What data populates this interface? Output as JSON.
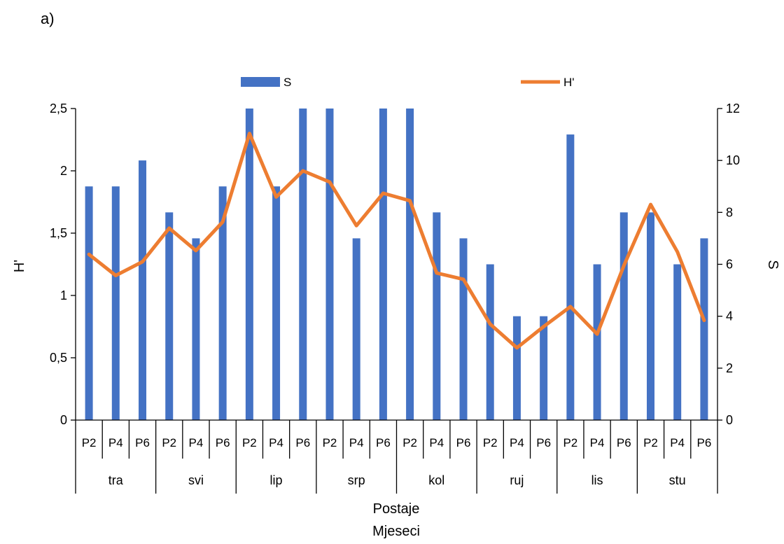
{
  "panel_label": "a)",
  "chart_data": {
    "type": "bar",
    "groups": [
      "tra",
      "svi",
      "lip",
      "srp",
      "kol",
      "ruj",
      "lis",
      "stu"
    ],
    "stations": [
      "P2",
      "P4",
      "P6"
    ],
    "xlabel_lines": [
      "Postaje",
      "Mjeseci"
    ],
    "ylabel_left": "H'",
    "ylabel_right": "S",
    "ylim_left": [
      0,
      2.5
    ],
    "yticks_left": [
      "0",
      "0,5",
      "1",
      "1,5",
      "2",
      "2,5"
    ],
    "ylim_right": [
      0,
      12
    ],
    "yticks_right": [
      "0",
      "2",
      "4",
      "6",
      "8",
      "10",
      "12"
    ],
    "legend_position": "top",
    "series": [
      {
        "name": "S",
        "type": "bar",
        "axis": "right",
        "color": "#4472C4",
        "values": [
          9,
          9,
          10,
          8,
          7,
          9,
          12,
          9,
          12,
          12,
          7,
          12,
          12,
          8,
          7,
          6,
          4,
          4,
          11,
          6,
          8,
          8,
          6,
          7
        ]
      },
      {
        "name": "H'",
        "type": "line",
        "axis": "left",
        "color": "#ED7D31",
        "values": [
          1.33,
          1.16,
          1.27,
          1.54,
          1.36,
          1.59,
          2.3,
          1.79,
          2.0,
          1.91,
          1.56,
          1.82,
          1.76,
          1.18,
          1.13,
          0.77,
          0.58,
          0.75,
          0.91,
          0.69,
          1.24,
          1.73,
          1.35,
          0.8
        ]
      }
    ]
  }
}
